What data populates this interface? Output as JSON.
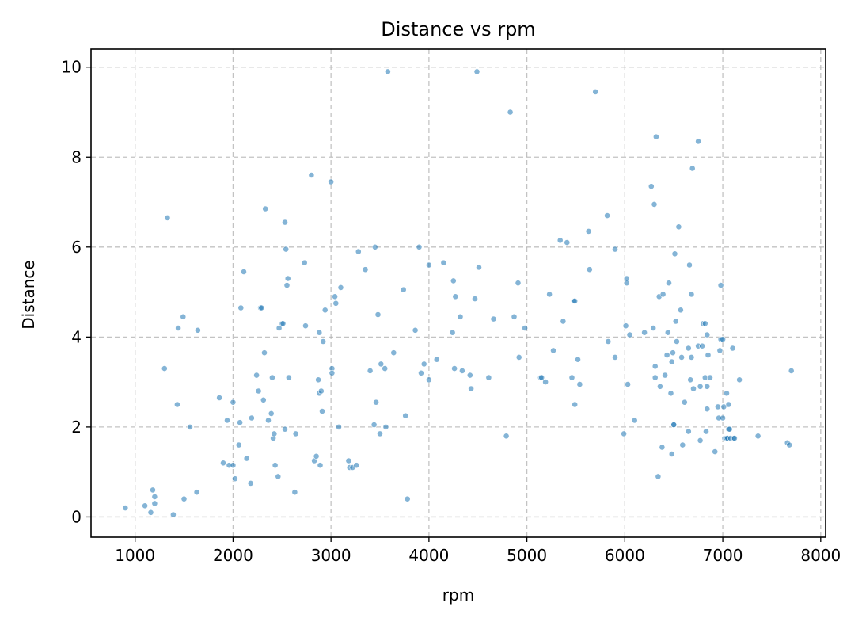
{
  "chart_data": {
    "type": "scatter",
    "title": "Distance vs rpm",
    "xlabel": "rpm",
    "ylabel": "Distance",
    "xlim": [
      550,
      8050
    ],
    "ylim": [
      -0.45,
      10.4
    ],
    "xticks": [
      1000,
      2000,
      3000,
      4000,
      5000,
      6000,
      7000,
      8000
    ],
    "yticks": [
      0,
      2,
      4,
      6,
      8,
      10
    ],
    "grid": true,
    "point_color": "#1f77b4",
    "point_alpha": 0.55,
    "points": [
      [
        900,
        0.2
      ],
      [
        1100,
        0.25
      ],
      [
        1160,
        0.1
      ],
      [
        1180,
        0.6
      ],
      [
        1200,
        0.45
      ],
      [
        1200,
        0.3
      ],
      [
        1300,
        3.3
      ],
      [
        1330,
        6.65
      ],
      [
        1390,
        0.05
      ],
      [
        1430,
        2.5
      ],
      [
        1440,
        4.2
      ],
      [
        1490,
        4.45
      ],
      [
        1500,
        0.4
      ],
      [
        1560,
        2.0
      ],
      [
        1630,
        0.55
      ],
      [
        1640,
        4.15
      ],
      [
        1860,
        2.65
      ],
      [
        1900,
        1.2
      ],
      [
        1940,
        2.15
      ],
      [
        1960,
        1.15
      ],
      [
        2000,
        2.55
      ],
      [
        2000,
        1.15
      ],
      [
        2020,
        0.85
      ],
      [
        2060,
        1.6
      ],
      [
        2070,
        2.1
      ],
      [
        2080,
        4.65
      ],
      [
        2110,
        5.45
      ],
      [
        2140,
        1.3
      ],
      [
        2180,
        0.75
      ],
      [
        2190,
        2.2
      ],
      [
        2240,
        3.15
      ],
      [
        2260,
        2.8
      ],
      [
        2280,
        4.65
      ],
      [
        2290,
        4.65
      ],
      [
        2310,
        2.6
      ],
      [
        2320,
        3.65
      ],
      [
        2330,
        6.85
      ],
      [
        2360,
        2.15
      ],
      [
        2390,
        2.3
      ],
      [
        2400,
        3.1
      ],
      [
        2410,
        1.75
      ],
      [
        2420,
        1.85
      ],
      [
        2430,
        1.15
      ],
      [
        2460,
        0.9
      ],
      [
        2470,
        4.2
      ],
      [
        2500,
        4.3
      ],
      [
        2510,
        4.3
      ],
      [
        2530,
        6.55
      ],
      [
        2530,
        1.95
      ],
      [
        2540,
        5.95
      ],
      [
        2550,
        5.15
      ],
      [
        2560,
        5.3
      ],
      [
        2570,
        3.1
      ],
      [
        2630,
        0.55
      ],
      [
        2640,
        1.85
      ],
      [
        2730,
        5.65
      ],
      [
        2740,
        4.25
      ],
      [
        2800,
        7.6
      ],
      [
        2830,
        1.25
      ],
      [
        2850,
        1.35
      ],
      [
        2870,
        3.05
      ],
      [
        2880,
        4.1
      ],
      [
        2880,
        2.75
      ],
      [
        2890,
        1.15
      ],
      [
        2900,
        2.8
      ],
      [
        2910,
        2.35
      ],
      [
        2920,
        3.9
      ],
      [
        2940,
        4.6
      ],
      [
        3000,
        7.45
      ],
      [
        3010,
        3.3
      ],
      [
        3010,
        3.2
      ],
      [
        3040,
        4.9
      ],
      [
        3050,
        4.75
      ],
      [
        3080,
        2.0
      ],
      [
        3100,
        5.1
      ],
      [
        3180,
        1.25
      ],
      [
        3190,
        1.1
      ],
      [
        3220,
        1.1
      ],
      [
        3260,
        1.15
      ],
      [
        3280,
        5.9
      ],
      [
        3350,
        5.5
      ],
      [
        3400,
        3.25
      ],
      [
        3440,
        2.05
      ],
      [
        3450,
        6.0
      ],
      [
        3460,
        2.55
      ],
      [
        3480,
        4.5
      ],
      [
        3500,
        1.85
      ],
      [
        3510,
        3.4
      ],
      [
        3550,
        3.3
      ],
      [
        3560,
        2.0
      ],
      [
        3580,
        9.9
      ],
      [
        3640,
        3.65
      ],
      [
        3740,
        5.05
      ],
      [
        3760,
        2.25
      ],
      [
        3780,
        0.4
      ],
      [
        3860,
        4.15
      ],
      [
        3900,
        6.0
      ],
      [
        3920,
        3.2
      ],
      [
        3950,
        3.4
      ],
      [
        4000,
        5.6
      ],
      [
        4000,
        3.05
      ],
      [
        4080,
        3.5
      ],
      [
        4150,
        5.65
      ],
      [
        4240,
        4.1
      ],
      [
        4250,
        5.25
      ],
      [
        4260,
        3.3
      ],
      [
        4270,
        4.9
      ],
      [
        4320,
        4.45
      ],
      [
        4340,
        3.25
      ],
      [
        4420,
        3.15
      ],
      [
        4430,
        2.85
      ],
      [
        4470,
        4.85
      ],
      [
        4490,
        9.9
      ],
      [
        4510,
        5.55
      ],
      [
        4610,
        3.1
      ],
      [
        4660,
        4.4
      ],
      [
        4790,
        1.8
      ],
      [
        4830,
        9.0
      ],
      [
        4870,
        4.45
      ],
      [
        4910,
        5.2
      ],
      [
        4920,
        3.55
      ],
      [
        4980,
        4.2
      ],
      [
        5140,
        3.1
      ],
      [
        5150,
        3.1
      ],
      [
        5190,
        3.0
      ],
      [
        5230,
        4.95
      ],
      [
        5270,
        3.7
      ],
      [
        5340,
        6.15
      ],
      [
        5370,
        4.35
      ],
      [
        5410,
        6.1
      ],
      [
        5460,
        3.1
      ],
      [
        5480,
        4.8
      ],
      [
        5490,
        4.8
      ],
      [
        5490,
        2.5
      ],
      [
        5520,
        3.5
      ],
      [
        5540,
        2.95
      ],
      [
        5630,
        6.35
      ],
      [
        5640,
        5.5
      ],
      [
        5700,
        9.45
      ],
      [
        5820,
        6.7
      ],
      [
        5830,
        3.9
      ],
      [
        5900,
        5.95
      ],
      [
        5900,
        3.55
      ],
      [
        5990,
        1.85
      ],
      [
        6010,
        4.25
      ],
      [
        6020,
        5.3
      ],
      [
        6020,
        5.2
      ],
      [
        6030,
        2.95
      ],
      [
        6050,
        4.05
      ],
      [
        6100,
        2.15
      ],
      [
        6200,
        4.1
      ],
      [
        6270,
        7.35
      ],
      [
        6290,
        4.2
      ],
      [
        6300,
        6.95
      ],
      [
        6310,
        3.35
      ],
      [
        6310,
        3.1
      ],
      [
        6320,
        8.45
      ],
      [
        6340,
        0.9
      ],
      [
        6350,
        4.9
      ],
      [
        6360,
        2.9
      ],
      [
        6380,
        1.55
      ],
      [
        6390,
        4.95
      ],
      [
        6410,
        3.15
      ],
      [
        6430,
        3.6
      ],
      [
        6440,
        4.1
      ],
      [
        6450,
        5.2
      ],
      [
        6470,
        2.75
      ],
      [
        6480,
        1.4
      ],
      [
        6480,
        3.45
      ],
      [
        6490,
        3.65
      ],
      [
        6500,
        2.05
      ],
      [
        6500,
        2.05
      ],
      [
        6510,
        5.85
      ],
      [
        6520,
        4.35
      ],
      [
        6530,
        3.9
      ],
      [
        6550,
        6.45
      ],
      [
        6570,
        4.6
      ],
      [
        6580,
        3.55
      ],
      [
        6590,
        1.6
      ],
      [
        6610,
        2.55
      ],
      [
        6650,
        1.9
      ],
      [
        6650,
        3.75
      ],
      [
        6660,
        5.6
      ],
      [
        6670,
        3.05
      ],
      [
        6680,
        4.95
      ],
      [
        6680,
        3.55
      ],
      [
        6690,
        7.75
      ],
      [
        6700,
        2.85
      ],
      [
        6750,
        8.35
      ],
      [
        6750,
        3.8
      ],
      [
        6770,
        1.7
      ],
      [
        6770,
        2.9
      ],
      [
        6790,
        3.8
      ],
      [
        6800,
        4.3
      ],
      [
        6820,
        4.3
      ],
      [
        6820,
        3.1
      ],
      [
        6830,
        1.9
      ],
      [
        6840,
        2.9
      ],
      [
        6840,
        2.4
      ],
      [
        6840,
        4.05
      ],
      [
        6850,
        3.6
      ],
      [
        6870,
        3.1
      ],
      [
        6920,
        1.45
      ],
      [
        6950,
        2.45
      ],
      [
        6960,
        2.2
      ],
      [
        6970,
        3.7
      ],
      [
        6980,
        5.15
      ],
      [
        6980,
        3.95
      ],
      [
        7000,
        3.95
      ],
      [
        7000,
        2.2
      ],
      [
        7010,
        2.45
      ],
      [
        7020,
        1.75
      ],
      [
        7030,
        1.75
      ],
      [
        7040,
        1.75
      ],
      [
        7040,
        2.75
      ],
      [
        7050,
        1.75
      ],
      [
        7060,
        1.95
      ],
      [
        7060,
        2.5
      ],
      [
        7070,
        1.95
      ],
      [
        7080,
        1.75
      ],
      [
        7100,
        3.75
      ],
      [
        7110,
        1.75
      ],
      [
        7120,
        1.75
      ],
      [
        7170,
        3.05
      ],
      [
        7360,
        1.8
      ],
      [
        7660,
        1.65
      ],
      [
        7680,
        1.6
      ],
      [
        7700,
        3.25
      ]
    ]
  }
}
